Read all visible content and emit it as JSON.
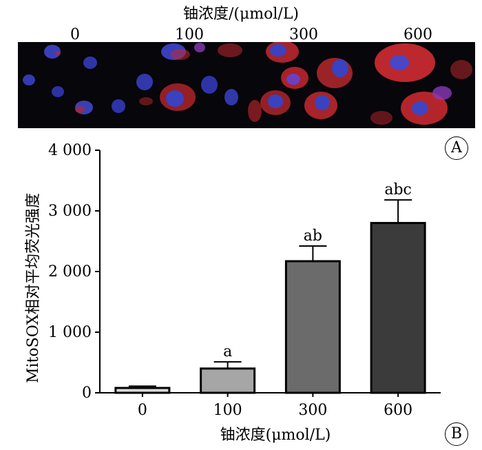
{
  "header": {
    "title": "铀浓度/(μmol/L)",
    "doses": [
      "0",
      "100",
      "300",
      "600"
    ]
  },
  "panels": {
    "a": "A",
    "b": "B"
  },
  "chart_data": {
    "type": "bar",
    "categories": [
      "0",
      "100",
      "300",
      "600"
    ],
    "values": [
      80,
      400,
      2170,
      2800
    ],
    "errors": [
      30,
      110,
      250,
      380
    ],
    "annotations": [
      "",
      "a",
      "ab",
      "abc"
    ],
    "xlabel": "铀浓度(μmol/L)",
    "ylabel": "MitoSOX相对平均荧光强度",
    "ylim": [
      0,
      4000
    ],
    "yticks": [
      0,
      1000,
      2000,
      3000,
      4000
    ],
    "ytick_labels": [
      "0",
      "1 000",
      "2 000",
      "3 000",
      "4 000"
    ],
    "bar_colors": [
      "#d9d9d9",
      "#a6a6a6",
      "#6b6b6b",
      "#3b3b3b"
    ],
    "grid": false
  }
}
